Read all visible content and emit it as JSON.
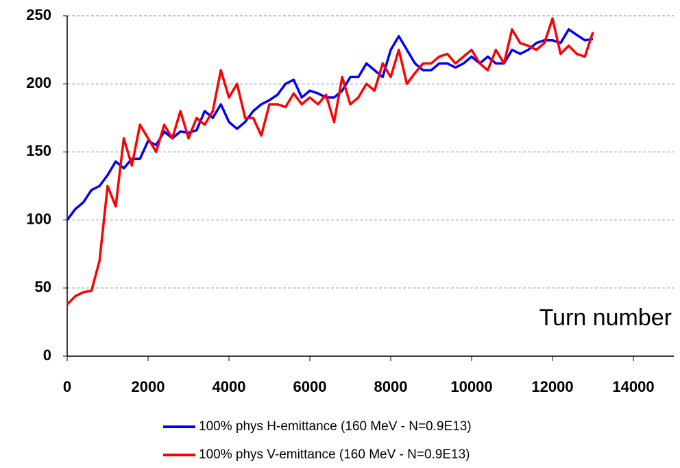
{
  "chart_data": {
    "type": "line",
    "annotation": "Turn number",
    "x": [
      0,
      200,
      400,
      600,
      800,
      1000,
      1200,
      1400,
      1600,
      1800,
      2000,
      2200,
      2400,
      2600,
      2800,
      3000,
      3200,
      3400,
      3600,
      3800,
      4000,
      4200,
      4400,
      4600,
      4800,
      5000,
      5200,
      5400,
      5600,
      5800,
      6000,
      6200,
      6400,
      6600,
      6800,
      7000,
      7200,
      7400,
      7600,
      7800,
      8000,
      8200,
      8400,
      8600,
      8800,
      9000,
      9200,
      9400,
      9600,
      9800,
      10000,
      10200,
      10400,
      10600,
      10800,
      11000,
      11200,
      11400,
      11600,
      11800,
      12000,
      12200,
      12400,
      12600,
      12800,
      13000
    ],
    "series": [
      {
        "name": "100% phys H-emittance (160 MeV - N=0.9E13)",
        "color": "#0000ff",
        "values": [
          100,
          108,
          113,
          122,
          125,
          133,
          143,
          138,
          145,
          145,
          158,
          155,
          165,
          160,
          165,
          164,
          166,
          180,
          175,
          185,
          172,
          167,
          172,
          180,
          185,
          188,
          192,
          200,
          203,
          190,
          195,
          193,
          190,
          190,
          195,
          205,
          205,
          215,
          210,
          205,
          225,
          235,
          225,
          215,
          210,
          210,
          215,
          215,
          212,
          215,
          220,
          215,
          220,
          215,
          215,
          225,
          222,
          225,
          230,
          232,
          232,
          230,
          240,
          236,
          232,
          233
        ]
      },
      {
        "name": "100% phys V-emittance (160 MeV - N=0.9E13)",
        "color": "#ff0000",
        "values": [
          38,
          44,
          47,
          48,
          70,
          125,
          110,
          160,
          140,
          170,
          160,
          150,
          170,
          160,
          180,
          160,
          175,
          170,
          180,
          210,
          190,
          200,
          175,
          175,
          162,
          185,
          185,
          183,
          193,
          185,
          190,
          185,
          192,
          172,
          205,
          185,
          190,
          200,
          195,
          215,
          205,
          225,
          200,
          208,
          215,
          215,
          220,
          222,
          215,
          220,
          225,
          215,
          210,
          225,
          215,
          240,
          230,
          228,
          225,
          230,
          248,
          222,
          228,
          222,
          220,
          238
        ]
      }
    ],
    "xlim": [
      0,
      15000
    ],
    "xticks": [
      0,
      2000,
      4000,
      6000,
      8000,
      10000,
      12000,
      14000
    ],
    "ylim": [
      0,
      250
    ],
    "yticks": [
      0,
      50,
      100,
      150,
      200,
      250
    ],
    "grid": true
  }
}
